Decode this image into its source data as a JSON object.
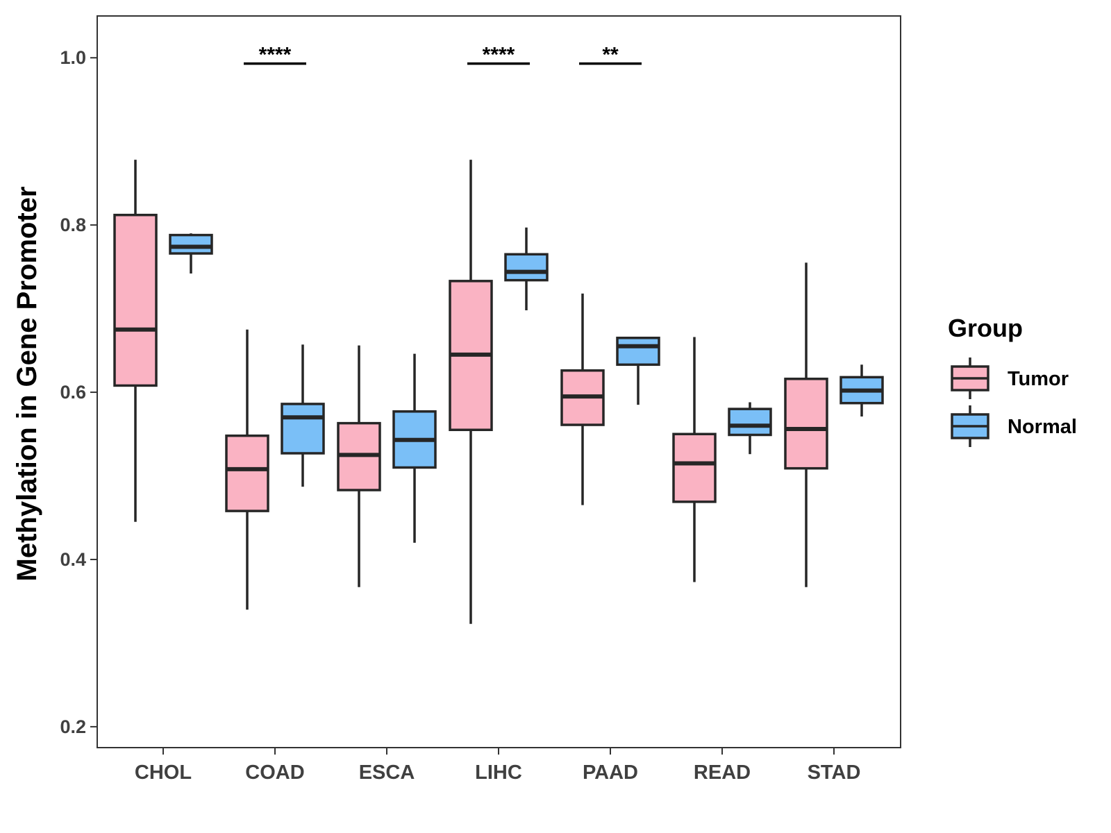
{
  "chart_data": {
    "type": "boxplot",
    "title": "",
    "xlabel": "",
    "ylabel": "Methylation in Gene Promoter",
    "ylim": [
      0.175,
      1.05
    ],
    "yticks": [
      0.2,
      0.4,
      0.6,
      0.8,
      1.0
    ],
    "ytick_labels": [
      "0.2",
      "0.4",
      "0.6",
      "0.8",
      "1.0"
    ],
    "grid": false,
    "categories": [
      "CHOL",
      "COAD",
      "ESCA",
      "LIHC",
      "PAAD",
      "READ",
      "STAD"
    ],
    "legend": {
      "title": "Group",
      "position": "right",
      "items": [
        {
          "label": "Tumor",
          "color": "#FAB3C3"
        },
        {
          "label": "Normal",
          "color": "#7ABFF7"
        }
      ]
    },
    "series": [
      {
        "name": "Tumor",
        "color": "#FAB3C3",
        "boxes": [
          {
            "category": "CHOL",
            "whisker_low": 0.445,
            "q1": 0.608,
            "median": 0.675,
            "q3": 0.812,
            "whisker_high": 0.878
          },
          {
            "category": "COAD",
            "whisker_low": 0.34,
            "q1": 0.458,
            "median": 0.508,
            "q3": 0.548,
            "whisker_high": 0.675
          },
          {
            "category": "ESCA",
            "whisker_low": 0.367,
            "q1": 0.483,
            "median": 0.525,
            "q3": 0.563,
            "whisker_high": 0.656
          },
          {
            "category": "LIHC",
            "whisker_low": 0.323,
            "q1": 0.555,
            "median": 0.645,
            "q3": 0.733,
            "whisker_high": 0.878
          },
          {
            "category": "PAAD",
            "whisker_low": 0.465,
            "q1": 0.561,
            "median": 0.595,
            "q3": 0.626,
            "whisker_high": 0.718
          },
          {
            "category": "READ",
            "whisker_low": 0.373,
            "q1": 0.469,
            "median": 0.515,
            "q3": 0.55,
            "whisker_high": 0.666
          },
          {
            "category": "STAD",
            "whisker_low": 0.367,
            "q1": 0.509,
            "median": 0.556,
            "q3": 0.616,
            "whisker_high": 0.755
          }
        ]
      },
      {
        "name": "Normal",
        "color": "#7ABFF7",
        "boxes": [
          {
            "category": "CHOL",
            "whisker_low": 0.742,
            "q1": 0.766,
            "median": 0.774,
            "q3": 0.788,
            "whisker_high": 0.79
          },
          {
            "category": "COAD",
            "whisker_low": 0.487,
            "q1": 0.527,
            "median": 0.57,
            "q3": 0.586,
            "whisker_high": 0.657
          },
          {
            "category": "ESCA",
            "whisker_low": 0.42,
            "q1": 0.51,
            "median": 0.543,
            "q3": 0.577,
            "whisker_high": 0.646
          },
          {
            "category": "LIHC",
            "whisker_low": 0.698,
            "q1": 0.734,
            "median": 0.744,
            "q3": 0.765,
            "whisker_high": 0.797
          },
          {
            "category": "PAAD",
            "whisker_low": 0.585,
            "q1": 0.633,
            "median": 0.655,
            "q3": 0.665,
            "whisker_high": 0.665
          },
          {
            "category": "READ",
            "whisker_low": 0.526,
            "q1": 0.549,
            "median": 0.56,
            "q3": 0.58,
            "whisker_high": 0.588
          },
          {
            "category": "STAD",
            "whisker_low": 0.571,
            "q1": 0.587,
            "median": 0.602,
            "q3": 0.618,
            "whisker_high": 0.633
          }
        ]
      }
    ],
    "annotations": [
      {
        "category": "COAD",
        "text": "****",
        "y": 0.993
      },
      {
        "category": "LIHC",
        "text": "****",
        "y": 0.993
      },
      {
        "category": "PAAD",
        "text": "**",
        "y": 0.993
      }
    ]
  }
}
